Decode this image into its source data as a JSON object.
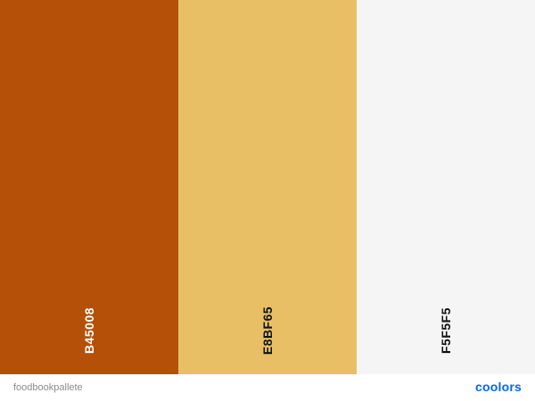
{
  "palette": {
    "name": "foodbookpallete",
    "colors": [
      {
        "hex": "B45008",
        "bg": "#B45008",
        "text_color": "#ffffff"
      },
      {
        "hex": "E8BF65",
        "bg": "#E8BF65",
        "text_color": "#111111"
      },
      {
        "hex": "F5F5F5",
        "bg": "#F5F5F5",
        "text_color": "#111111"
      }
    ]
  },
  "brand": {
    "logo_text": "coolors",
    "color": "#0066ff"
  }
}
